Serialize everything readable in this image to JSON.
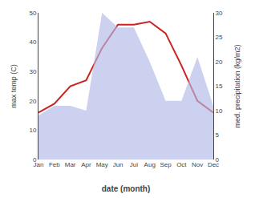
{
  "chart_data": {
    "type": "line",
    "xlabel": "date (month)",
    "ylabel": "max temp (C)",
    "y2label": "med. precipitation (kg/m2)",
    "categories": [
      "Jan",
      "Feb",
      "Mar",
      "Apr",
      "May",
      "Jun",
      "Jul",
      "Aug",
      "Sep",
      "Oct",
      "Nov",
      "Dec"
    ],
    "series": [
      {
        "type": "area",
        "axis": "y2",
        "color": "#b0b8e8",
        "values": [
          9,
          11,
          11,
          10,
          30,
          27,
          27,
          20,
          12,
          12,
          21,
          11
        ]
      },
      {
        "type": "line",
        "color": "#cc2222",
        "values": [
          16,
          19,
          25,
          27,
          38,
          46,
          46,
          47,
          43,
          32,
          20,
          16
        ]
      }
    ],
    "ylim": [
      0,
      50
    ],
    "yticks": [
      0,
      10,
      20,
      30,
      40,
      50
    ],
    "y2lim": [
      0,
      30
    ],
    "y2ticks": [
      0,
      5,
      10,
      15,
      20,
      25,
      30
    ],
    "grid": false
  }
}
